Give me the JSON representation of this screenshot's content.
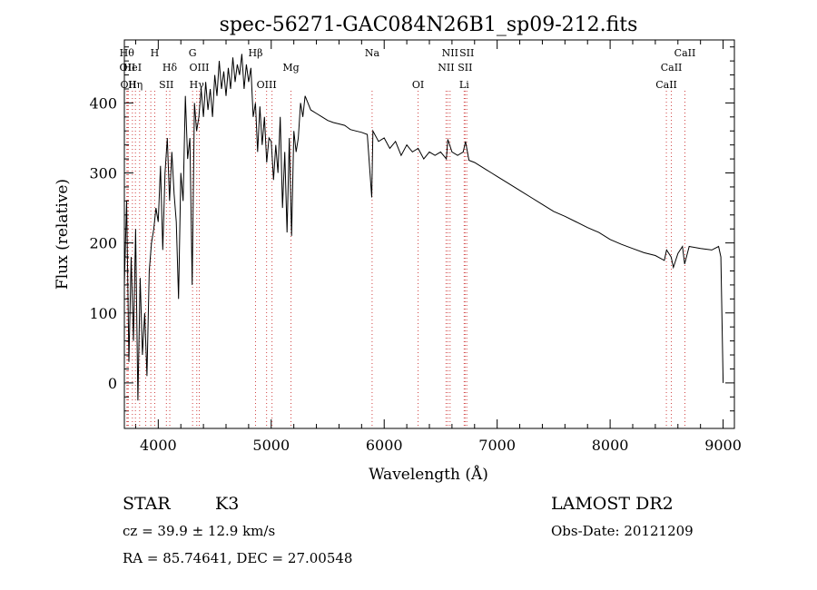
{
  "chart_data": {
    "type": "line",
    "title": "spec-56271-GAC084N26B1_sp09-212.fits",
    "xlabel": "Wavelength (Å)",
    "ylabel": "Flux (relative)",
    "xlim": [
      3700,
      9100
    ],
    "ylim": [
      -65,
      490
    ],
    "x_ticks": [
      4000,
      5000,
      6000,
      7000,
      8000,
      9000
    ],
    "y_ticks": [
      0,
      100,
      200,
      300,
      400
    ],
    "grid": false,
    "series": [
      {
        "x": [
          3700,
          3720,
          3740,
          3760,
          3780,
          3800,
          3820,
          3840,
          3860,
          3880,
          3900,
          3920,
          3940,
          3960,
          3980,
          4000,
          4020,
          4040,
          4060,
          4080,
          4100,
          4120,
          4140,
          4160,
          4180,
          4200,
          4220,
          4240,
          4260,
          4280,
          4300,
          4320,
          4340,
          4360,
          4380,
          4400,
          4420,
          4440,
          4460,
          4480,
          4500,
          4520,
          4540,
          4560,
          4580,
          4600,
          4620,
          4640,
          4660,
          4680,
          4700,
          4720,
          4740,
          4760,
          4780,
          4800,
          4820,
          4840,
          4860,
          4880,
          4900,
          4920,
          4940,
          4960,
          4980,
          5000,
          5020,
          5040,
          5060,
          5080,
          5100,
          5120,
          5140,
          5160,
          5180,
          5200,
          5220,
          5240,
          5260,
          5280,
          5300,
          5350,
          5400,
          5450,
          5500,
          5550,
          5600,
          5650,
          5700,
          5750,
          5800,
          5850,
          5890,
          5900,
          5950,
          6000,
          6050,
          6100,
          6150,
          6200,
          6250,
          6300,
          6350,
          6400,
          6450,
          6500,
          6550,
          6563,
          6600,
          6650,
          6700,
          6720,
          6750,
          6800,
          6850,
          6900,
          6950,
          7000,
          7100,
          7200,
          7300,
          7400,
          7500,
          7600,
          7700,
          7800,
          7900,
          8000,
          8100,
          8200,
          8300,
          8400,
          8480,
          8500,
          8540,
          8560,
          8600,
          8640,
          8660,
          8700,
          8800,
          8900,
          8960,
          8980,
          9000
        ],
        "y": [
          140,
          260,
          30,
          180,
          60,
          220,
          -25,
          150,
          40,
          100,
          10,
          160,
          200,
          220,
          250,
          230,
          310,
          190,
          300,
          350,
          260,
          330,
          270,
          230,
          120,
          300,
          260,
          410,
          320,
          350,
          140,
          400,
          360,
          380,
          420,
          380,
          430,
          390,
          420,
          380,
          440,
          410,
          460,
          420,
          445,
          410,
          450,
          420,
          465,
          430,
          455,
          440,
          470,
          420,
          455,
          430,
          450,
          380,
          400,
          330,
          395,
          340,
          380,
          315,
          350,
          345,
          290,
          340,
          300,
          380,
          250,
          330,
          215,
          350,
          210,
          360,
          330,
          350,
          400,
          380,
          410,
          390,
          385,
          380,
          375,
          372,
          370,
          368,
          362,
          360,
          358,
          355,
          265,
          360,
          345,
          350,
          335,
          345,
          325,
          340,
          330,
          335,
          320,
          330,
          325,
          330,
          320,
          348,
          330,
          325,
          330,
          345,
          318,
          315,
          310,
          305,
          300,
          295,
          285,
          275,
          265,
          255,
          245,
          238,
          230,
          222,
          215,
          205,
          198,
          192,
          186,
          182,
          175,
          190,
          180,
          165,
          185,
          195,
          170,
          195,
          192,
          190,
          195,
          180,
          0
        ]
      }
    ],
    "lines": [
      {
        "x": 3722,
        "label": "Hθ",
        "row": 1
      },
      {
        "x": 3727,
        "label": "OII",
        "row": 2
      },
      {
        "x": 3735,
        "label": "OII",
        "row": 3
      },
      {
        "x": 3771,
        "label": "HeI",
        "row": 2
      },
      {
        "x": 3798,
        "label": "Hη",
        "row": 3
      },
      {
        "x": 3835,
        "label": "",
        "row": 0
      },
      {
        "x": 3889,
        "label": "",
        "row": 0
      },
      {
        "x": 3934,
        "label": "",
        "row": 0
      },
      {
        "x": 3969,
        "label": "H",
        "row": 1
      },
      {
        "x": 4072,
        "label": "SII",
        "row": 3
      },
      {
        "x": 4102,
        "label": "Hδ",
        "row": 2
      },
      {
        "x": 4304,
        "label": "G",
        "row": 1
      },
      {
        "x": 4341,
        "label": "Hγ",
        "row": 3
      },
      {
        "x": 4363,
        "label": "OIII",
        "row": 2
      },
      {
        "x": 4861,
        "label": "Hβ",
        "row": 1
      },
      {
        "x": 4959,
        "label": "OIII",
        "row": 3
      },
      {
        "x": 5007,
        "label": "",
        "row": 0
      },
      {
        "x": 5175,
        "label": "Mg",
        "row": 2
      },
      {
        "x": 5893,
        "label": "Na",
        "row": 1
      },
      {
        "x": 6300,
        "label": "OI",
        "row": 3
      },
      {
        "x": 6548,
        "label": "NII",
        "row": 2
      },
      {
        "x": 6583,
        "label": "NII",
        "row": 1
      },
      {
        "x": 6563,
        "label": "",
        "row": 0
      },
      {
        "x": 6708,
        "label": "Li",
        "row": 3
      },
      {
        "x": 6716,
        "label": "SII",
        "row": 2
      },
      {
        "x": 6731,
        "label": "SII",
        "row": 1
      },
      {
        "x": 8498,
        "label": "CaII",
        "row": 3
      },
      {
        "x": 8542,
        "label": "CaII",
        "row": 2
      },
      {
        "x": 8662,
        "label": "CaII",
        "row": 1
      }
    ]
  },
  "info": {
    "star_label": "STAR",
    "star_type": "K3",
    "survey": "LAMOST DR2",
    "cz": "cz = 39.9 ± 12.9 km/s",
    "obs_date": "Obs-Date: 20121209",
    "coords": "RA =  85.74641, DEC =  27.00548"
  }
}
